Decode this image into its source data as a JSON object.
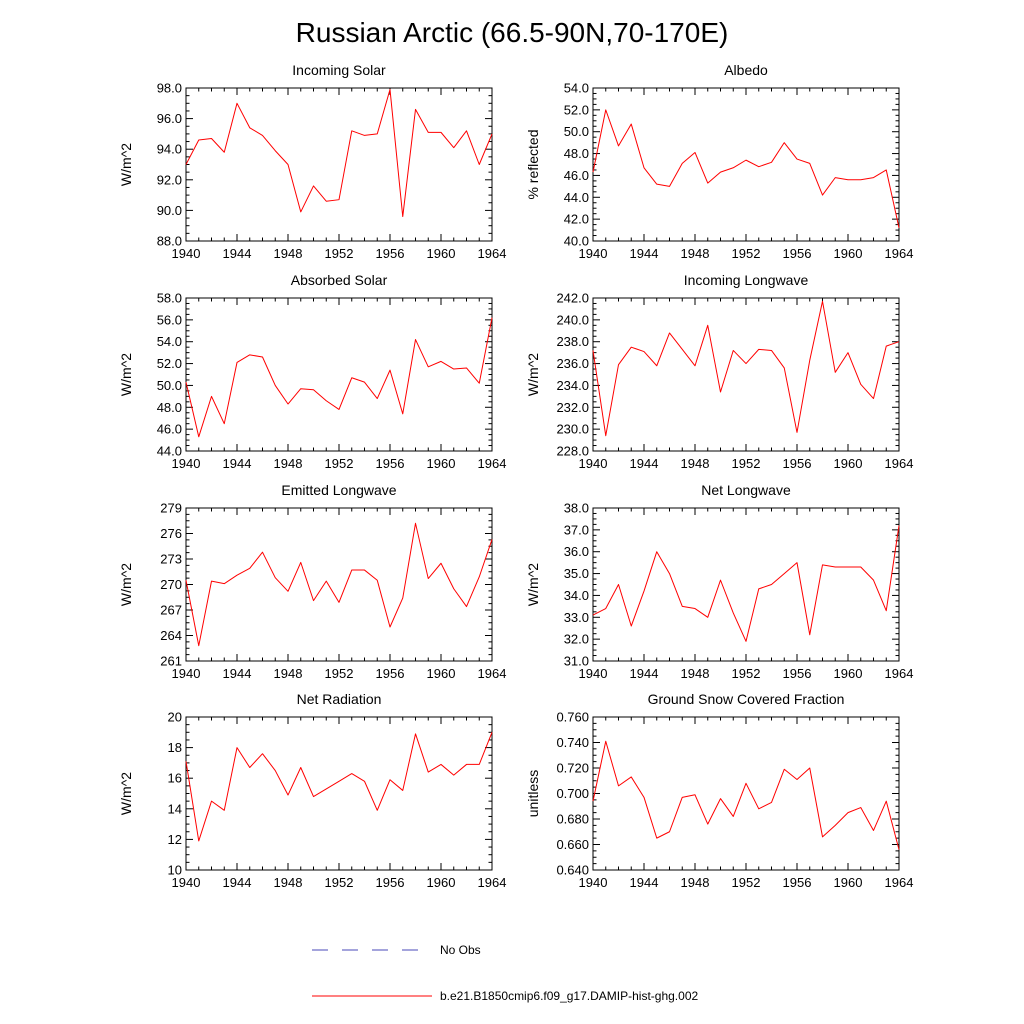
{
  "page_title": "Russian Arctic (66.5-90N,70-170E)",
  "colors": {
    "model_line": "#ff0000",
    "obs_line": "#4a4ab8",
    "axis": "#000000"
  },
  "legend": {
    "obs_label": "No Obs",
    "model_label": "b.e21.B1850cmip6.f09_g17.DAMIP-hist-ghg.002"
  },
  "chart_data": [
    {
      "type": "line",
      "title": "Incoming Solar",
      "xlabel": "",
      "ylabel": "W/m^2",
      "xlim": [
        1940,
        1964
      ],
      "ylim": [
        88,
        98
      ],
      "xticks": [
        1940,
        1944,
        1948,
        1952,
        1956,
        1960,
        1964
      ],
      "xtick_labels": [
        "1940",
        "1944",
        "1948",
        "1952",
        "1956",
        "1960",
        "1964"
      ],
      "yticks": [
        88,
        90,
        92,
        94,
        96,
        98
      ],
      "ytick_labels": [
        "88.0",
        "90.0",
        "92.0",
        "94.0",
        "96.0",
        "98.0"
      ],
      "x": [
        1940,
        1941,
        1942,
        1943,
        1944,
        1945,
        1946,
        1947,
        1948,
        1949,
        1950,
        1951,
        1952,
        1953,
        1954,
        1955,
        1956,
        1957,
        1958,
        1959,
        1960,
        1961,
        1962,
        1963,
        1964
      ],
      "values": [
        93.0,
        94.6,
        94.7,
        93.8,
        97.0,
        95.4,
        94.9,
        93.9,
        93.0,
        89.9,
        91.6,
        90.6,
        90.7,
        95.2,
        94.9,
        95.0,
        97.9,
        89.6,
        96.6,
        95.1,
        95.1,
        94.1,
        95.2,
        93.0,
        95.0
      ]
    },
    {
      "type": "line",
      "title": "Albedo",
      "xlabel": "",
      "ylabel": "% reflected",
      "xlim": [
        1940,
        1964
      ],
      "ylim": [
        40,
        54
      ],
      "xticks": [
        1940,
        1944,
        1948,
        1952,
        1956,
        1960,
        1964
      ],
      "xtick_labels": [
        "1940",
        "1944",
        "1948",
        "1952",
        "1956",
        "1960",
        "1964"
      ],
      "yticks": [
        40,
        42,
        44,
        46,
        48,
        50,
        52,
        54
      ],
      "ytick_labels": [
        "40.0",
        "42.0",
        "44.0",
        "46.0",
        "48.0",
        "50.0",
        "52.0",
        "54.0"
      ],
      "x": [
        1940,
        1941,
        1942,
        1943,
        1944,
        1945,
        1946,
        1947,
        1948,
        1949,
        1950,
        1951,
        1952,
        1953,
        1954,
        1955,
        1956,
        1957,
        1958,
        1959,
        1960,
        1961,
        1962,
        1963,
        1964
      ],
      "values": [
        46.3,
        52.0,
        48.7,
        50.7,
        46.7,
        45.2,
        45.0,
        47.1,
        48.1,
        45.3,
        46.3,
        46.7,
        47.4,
        46.8,
        47.2,
        49.0,
        47.5,
        47.1,
        44.2,
        45.8,
        45.6,
        45.6,
        45.8,
        46.5,
        41.2
      ]
    },
    {
      "type": "line",
      "title": "Absorbed Solar",
      "xlabel": "",
      "ylabel": "W/m^2",
      "xlim": [
        1940,
        1964
      ],
      "ylim": [
        44,
        58
      ],
      "xticks": [
        1940,
        1944,
        1948,
        1952,
        1956,
        1960,
        1964
      ],
      "xtick_labels": [
        "1940",
        "1944",
        "1948",
        "1952",
        "1956",
        "1960",
        "1964"
      ],
      "yticks": [
        44,
        46,
        48,
        50,
        52,
        54,
        56,
        58
      ],
      "ytick_labels": [
        "44.0",
        "46.0",
        "48.0",
        "50.0",
        "52.0",
        "54.0",
        "56.0",
        "58.0"
      ],
      "x": [
        1940,
        1941,
        1942,
        1943,
        1944,
        1945,
        1946,
        1947,
        1948,
        1949,
        1950,
        1951,
        1952,
        1953,
        1954,
        1955,
        1956,
        1957,
        1958,
        1959,
        1960,
        1961,
        1962,
        1963,
        1964
      ],
      "values": [
        50.3,
        45.3,
        49.0,
        46.5,
        52.1,
        52.8,
        52.6,
        50.0,
        48.3,
        49.7,
        49.6,
        48.6,
        47.8,
        50.7,
        50.3,
        48.8,
        51.4,
        47.4,
        54.2,
        51.7,
        52.2,
        51.5,
        51.6,
        50.2,
        56.2
      ]
    },
    {
      "type": "line",
      "title": "Incoming Longwave",
      "xlabel": "",
      "ylabel": "W/m^2",
      "xlim": [
        1940,
        1964
      ],
      "ylim": [
        228,
        242
      ],
      "xticks": [
        1940,
        1944,
        1948,
        1952,
        1956,
        1960,
        1964
      ],
      "xtick_labels": [
        "1940",
        "1944",
        "1948",
        "1952",
        "1956",
        "1960",
        "1964"
      ],
      "yticks": [
        228,
        230,
        232,
        234,
        236,
        238,
        240,
        242
      ],
      "ytick_labels": [
        "228.0",
        "230.0",
        "232.0",
        "234.0",
        "236.0",
        "238.0",
        "240.0",
        "242.0"
      ],
      "x": [
        1940,
        1941,
        1942,
        1943,
        1944,
        1945,
        1946,
        1947,
        1948,
        1949,
        1950,
        1951,
        1952,
        1953,
        1954,
        1955,
        1956,
        1957,
        1958,
        1959,
        1960,
        1961,
        1962,
        1963,
        1964
      ],
      "values": [
        237.2,
        229.4,
        235.9,
        237.5,
        237.1,
        235.8,
        238.8,
        237.3,
        235.8,
        239.5,
        233.4,
        237.2,
        236.0,
        237.3,
        237.2,
        235.6,
        229.7,
        236.3,
        241.7,
        235.2,
        237.0,
        234.1,
        232.8,
        237.6,
        238.0
      ]
    },
    {
      "type": "line",
      "title": "Emitted Longwave",
      "xlabel": "",
      "ylabel": "W/m^2",
      "xlim": [
        1940,
        1964
      ],
      "ylim": [
        261,
        279
      ],
      "xticks": [
        1940,
        1944,
        1948,
        1952,
        1956,
        1960,
        1964
      ],
      "xtick_labels": [
        "1940",
        "1944",
        "1948",
        "1952",
        "1956",
        "1960",
        "1964"
      ],
      "yticks": [
        261,
        264,
        267,
        270,
        273,
        276,
        279
      ],
      "ytick_labels": [
        "261",
        "264",
        "267",
        "270",
        "273",
        "276",
        "279"
      ],
      "x": [
        1940,
        1941,
        1942,
        1943,
        1944,
        1945,
        1946,
        1947,
        1948,
        1949,
        1950,
        1951,
        1952,
        1953,
        1954,
        1955,
        1956,
        1957,
        1958,
        1959,
        1960,
        1961,
        1962,
        1963,
        1964
      ],
      "values": [
        270.5,
        262.8,
        270.4,
        270.1,
        271.1,
        271.9,
        273.8,
        270.8,
        269.2,
        272.6,
        268.1,
        270.4,
        267.9,
        271.7,
        271.7,
        270.5,
        265.0,
        268.4,
        277.2,
        270.7,
        272.5,
        269.5,
        267.4,
        270.9,
        275.3
      ]
    },
    {
      "type": "line",
      "title": "Net Longwave",
      "xlabel": "",
      "ylabel": "W/m^2",
      "xlim": [
        1940,
        1964
      ],
      "ylim": [
        31,
        38
      ],
      "xticks": [
        1940,
        1944,
        1948,
        1952,
        1956,
        1960,
        1964
      ],
      "xtick_labels": [
        "1940",
        "1944",
        "1948",
        "1952",
        "1956",
        "1960",
        "1964"
      ],
      "yticks": [
        31,
        32,
        33,
        34,
        35,
        36,
        37,
        38
      ],
      "ytick_labels": [
        "31.0",
        "32.0",
        "33.0",
        "34.0",
        "35.0",
        "36.0",
        "37.0",
        "38.0"
      ],
      "x": [
        1940,
        1941,
        1942,
        1943,
        1944,
        1945,
        1946,
        1947,
        1948,
        1949,
        1950,
        1951,
        1952,
        1953,
        1954,
        1955,
        1956,
        1957,
        1958,
        1959,
        1960,
        1961,
        1962,
        1963,
        1964
      ],
      "values": [
        33.1,
        33.4,
        34.5,
        32.6,
        34.2,
        36.0,
        35.0,
        33.5,
        33.4,
        33.0,
        34.7,
        33.2,
        31.9,
        34.3,
        34.5,
        35.0,
        35.5,
        32.2,
        35.4,
        35.3,
        35.3,
        35.3,
        34.7,
        33.3,
        37.2
      ]
    },
    {
      "type": "line",
      "title": "Net Radiation",
      "xlabel": "",
      "ylabel": "W/m^2",
      "xlim": [
        1940,
        1964
      ],
      "ylim": [
        10,
        20
      ],
      "xticks": [
        1940,
        1944,
        1948,
        1952,
        1956,
        1960,
        1964
      ],
      "xtick_labels": [
        "1940",
        "1944",
        "1948",
        "1952",
        "1956",
        "1960",
        "1964"
      ],
      "yticks": [
        10,
        12,
        14,
        16,
        18,
        20
      ],
      "ytick_labels": [
        "10",
        "12",
        "14",
        "16",
        "18",
        "20"
      ],
      "x": [
        1940,
        1941,
        1942,
        1943,
        1944,
        1945,
        1946,
        1947,
        1948,
        1949,
        1950,
        1951,
        1952,
        1953,
        1954,
        1955,
        1956,
        1957,
        1958,
        1959,
        1960,
        1961,
        1962,
        1963,
        1964
      ],
      "values": [
        17.1,
        11.9,
        14.5,
        13.9,
        18.0,
        16.7,
        17.6,
        16.5,
        14.9,
        16.7,
        14.8,
        15.3,
        15.8,
        16.3,
        15.8,
        13.9,
        15.9,
        15.2,
        18.9,
        16.4,
        16.9,
        16.2,
        16.9,
        16.9,
        19.0
      ]
    },
    {
      "type": "line",
      "title": "Ground Snow Covered Fraction",
      "xlabel": "",
      "ylabel": "unitless",
      "xlim": [
        1940,
        1964
      ],
      "ylim": [
        0.64,
        0.76
      ],
      "xticks": [
        1940,
        1944,
        1948,
        1952,
        1956,
        1960,
        1964
      ],
      "xtick_labels": [
        "1940",
        "1944",
        "1948",
        "1952",
        "1956",
        "1960",
        "1964"
      ],
      "yticks": [
        0.64,
        0.66,
        0.68,
        0.7,
        0.72,
        0.74,
        0.76
      ],
      "ytick_labels": [
        "0.640",
        "0.660",
        "0.680",
        "0.700",
        "0.720",
        "0.740",
        "0.760"
      ],
      "x": [
        1940,
        1941,
        1942,
        1943,
        1944,
        1945,
        1946,
        1947,
        1948,
        1949,
        1950,
        1951,
        1952,
        1953,
        1954,
        1955,
        1956,
        1957,
        1958,
        1959,
        1960,
        1961,
        1962,
        1963,
        1964
      ],
      "values": [
        0.694,
        0.741,
        0.706,
        0.713,
        0.697,
        0.665,
        0.67,
        0.697,
        0.699,
        0.676,
        0.696,
        0.682,
        0.708,
        0.688,
        0.693,
        0.719,
        0.711,
        0.72,
        0.666,
        0.675,
        0.685,
        0.689,
        0.671,
        0.694,
        0.656
      ]
    }
  ]
}
